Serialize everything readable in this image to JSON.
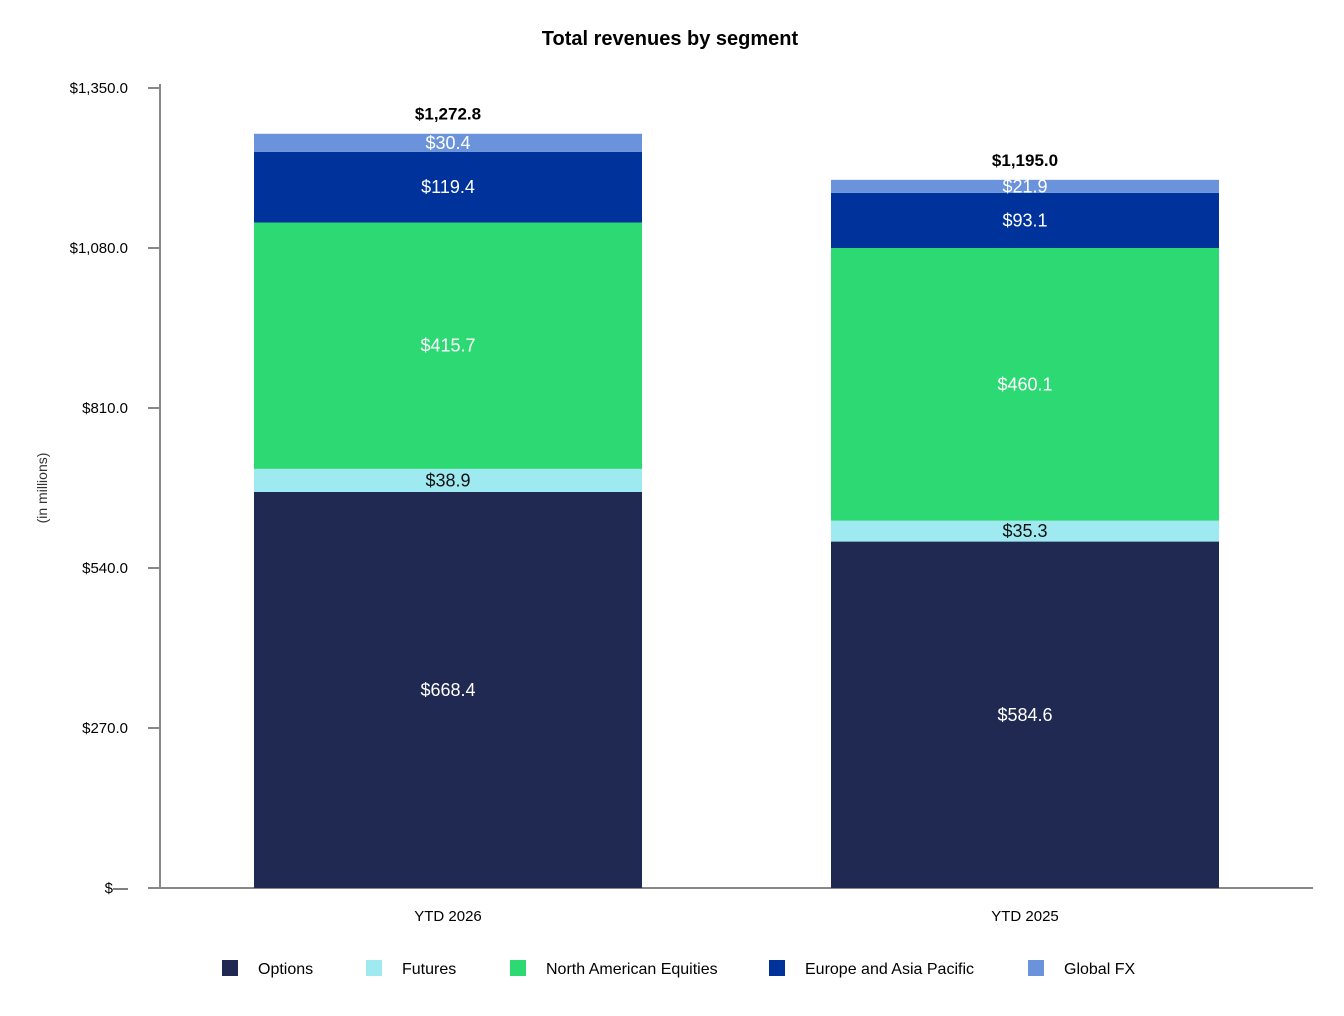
{
  "chart_data": {
    "type": "bar",
    "stacked": true,
    "title": "Total revenues by segment",
    "ylabel": "(in millions)",
    "xlabel": "",
    "ylim": [
      0,
      1350
    ],
    "y_ticks": [
      0,
      270,
      540,
      810,
      1080,
      1350
    ],
    "y_tick_labels": [
      "$—",
      "$270.0",
      "$540.0",
      "$810.0",
      "$1,080.0",
      "$1,350.0"
    ],
    "categories": [
      "YTD 2026",
      "YTD 2025"
    ],
    "totals": [
      1272.8,
      1195.0
    ],
    "total_labels": [
      "$1,272.8",
      "$1,195.0"
    ],
    "series": [
      {
        "name": "Options",
        "color": "#1f2952",
        "label_color": "#ffffff",
        "values": [
          668.4,
          584.6
        ],
        "labels": [
          "$668.4",
          "$584.6"
        ]
      },
      {
        "name": "Futures",
        "color": "#9eeaf0",
        "label_color": "#111111",
        "values": [
          38.9,
          35.3
        ],
        "labels": [
          "$38.9",
          "$35.3"
        ]
      },
      {
        "name": "North American Equities",
        "color": "#2dd973",
        "label_color": "#ffffff",
        "values": [
          415.7,
          460.1
        ],
        "labels": [
          "$415.7",
          "$460.1"
        ]
      },
      {
        "name": "Europe and Asia Pacific",
        "color": "#00329b",
        "label_color": "#ffffff",
        "values": [
          119.4,
          93.1
        ],
        "labels": [
          "$119.4",
          "$93.1"
        ]
      },
      {
        "name": "Global FX",
        "color": "#6a93dc",
        "label_color": "#ffffff",
        "values": [
          30.4,
          21.9
        ],
        "labels": [
          "$30.4",
          "$21.9"
        ]
      }
    ],
    "legend_position": "bottom",
    "grid": false
  }
}
